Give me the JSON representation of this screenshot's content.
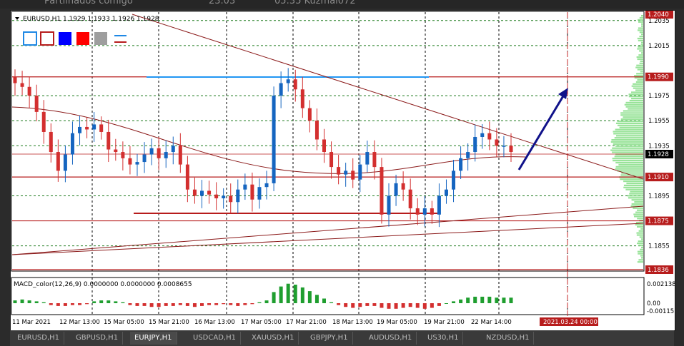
{
  "window": {
    "title": "Partilhados comigo",
    "date": "23.03",
    "time": "05:35 Kuzmal072"
  },
  "symbol_line": "EURUSD,H1  1.1929 1.1933 1.1926 1.1928",
  "indicator_line": "MACD_color(12,26,9) 0.0000000 0.0000000 0.0008655",
  "price_axis": [
    "1.2035",
    "1.2015",
    "1.1975",
    "1.1955",
    "1.1935",
    "1.1895",
    "1.1855"
  ],
  "price_tags": {
    "top": "1.2040",
    "level_1990": "1.1990",
    "current": "1.1928",
    "level_1910": "1.1910",
    "level_1875": "1.1875",
    "bottom": "1.1836"
  },
  "macd_axis": [
    "0.002138",
    "0.00",
    "-0.00115"
  ],
  "time_axis": [
    "11 Mar 2021",
    "12 Mar 13:00",
    "15 Mar 05:00",
    "15 Mar 21:00",
    "16 Mar 13:00",
    "17 Mar 05:00",
    "17 Mar 21:00",
    "18 Mar 13:00",
    "19 Mar 05:00",
    "19 Mar 21:00",
    "22 Mar 14:00"
  ],
  "time_highlight": "2021.03.24 00:00",
  "toolbar": {
    "colors": [
      "#1e88e5",
      "#b71c1c",
      "#0000ff",
      "#ff0000",
      "#9e9e9e",
      "#b71c1c"
    ]
  },
  "tabs": [
    "EURUSD,H1",
    "GBPUSD,H1",
    "EURJPY,H1",
    "USDCAD,H1",
    "XAUUSD,H1",
    "GBPJPY,H1",
    "AUDUSD,H1",
    "US30,H1",
    "NZDUSD,H1"
  ],
  "chart_data": {
    "type": "candlestick",
    "title": "",
    "symbol": "EURUSD",
    "timeframe": "H1",
    "ylim": [
      1.1836,
      1.204
    ],
    "horizontal_levels": [
      1.199,
      1.191,
      1.1875,
      1.1836
    ],
    "current_price": 1.1928,
    "colors": {
      "bull": "#1565c0",
      "bear": "#d32f2f",
      "levels": "#b71c1c"
    },
    "close_path": [
      1.1985,
      1.1982,
      1.1975,
      1.1962,
      1.1946,
      1.193,
      1.1915,
      1.1928,
      1.1945,
      1.195,
      1.1948,
      1.1952,
      1.1946,
      1.1932,
      1.193,
      1.1925,
      1.192,
      1.1922,
      1.1928,
      1.1933,
      1.1925,
      1.193,
      1.1935,
      1.192,
      1.19,
      1.1895,
      1.1899,
      1.1896,
      1.1893,
      1.1895,
      1.189,
      1.19,
      1.1904,
      1.1892,
      1.1902,
      1.1905,
      1.1975,
      1.1985,
      1.1988,
      1.198,
      1.1965,
      1.1955,
      1.194,
      1.193,
      1.1918,
      1.1912,
      1.1915,
      1.1908,
      1.192,
      1.193,
      1.1918,
      1.188,
      1.1895,
      1.1905,
      1.19,
      1.1885,
      1.188,
      1.1885,
      1.188,
      1.1895,
      1.19,
      1.1915,
      1.1925,
      1.193,
      1.1942,
      1.1945,
      1.194,
      1.1935,
      1.1935,
      1.193
    ],
    "macd_histogram": [
      0.0003,
      0.0004,
      0.0003,
      0.0002,
      0.0001,
      -0.0002,
      -0.0003,
      -0.0003,
      -0.0002,
      -0.0002,
      -0.0001,
      0.0002,
      0.0003,
      0.0003,
      0.0002,
      0.0001,
      -0.0002,
      -0.0003,
      -0.0003,
      -0.0004,
      -0.0004,
      -0.0003,
      -0.0003,
      -0.0002,
      -0.0003,
      -0.0004,
      -0.0003,
      -0.0002,
      -0.0002,
      -0.0001,
      -0.0002,
      -0.0003,
      -0.0002,
      -0.0001,
      0.0001,
      0.0003,
      0.0012,
      0.0018,
      0.0021,
      0.002,
      0.0017,
      0.0013,
      0.0009,
      0.0005,
      0.0001,
      -0.0002,
      -0.0004,
      -0.0005,
      -0.0004,
      -0.0003,
      -0.0003,
      -0.0005,
      -0.0006,
      -0.0006,
      -0.0005,
      -0.0004,
      -0.0005,
      -0.0006,
      -0.0005,
      -0.0003,
      0.0,
      0.0002,
      0.0004,
      0.0006,
      0.0007,
      0.0007,
      0.0007,
      0.0006,
      0.0006,
      0.0006
    ]
  }
}
